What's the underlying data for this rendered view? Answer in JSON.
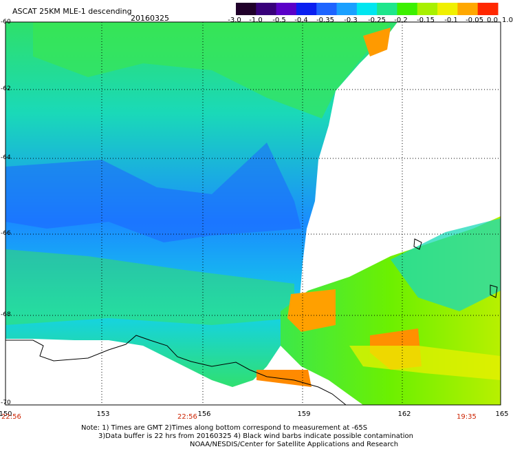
{
  "header": {
    "title": "ASCAT 25KM MLE-1 descending",
    "date": "20160325"
  },
  "colorbar": {
    "labels": [
      "-3.0",
      "-1.0",
      "-0.5",
      "-0.4",
      "-0.35",
      "-0.3",
      "-0.25",
      "-0.2",
      "-0.15",
      "-0.1",
      "-0.05",
      "0.0",
      "1.0"
    ],
    "colors": [
      "#20002a",
      "#38007a",
      "#5a00c8",
      "#0a1ef0",
      "#1e64ff",
      "#1aa0ff",
      "#00e6f0",
      "#1ee68c",
      "#3cf000",
      "#a8f000",
      "#f0f000",
      "#ffa800",
      "#ff2800"
    ]
  },
  "map": {
    "latitudes": [
      "-60",
      "-62",
      "-64",
      "-66",
      "-68",
      "-70"
    ],
    "longitudes": [
      "150",
      "153",
      "156",
      "159",
      "162",
      "165"
    ],
    "times": {
      "left": "22:56",
      "middle": "22:56",
      "right": "19:35"
    }
  },
  "footer": {
    "note1": "Note: 1) Times are GMT 2)Times along bottom correspond to measurement at -65S",
    "note2": "3)Data buffer is 22 hrs from 20160325 4) Black wind barbs indicate possible contamination",
    "credit": "NOAA/NESDIS/Center for Satellite Applications and Research"
  }
}
